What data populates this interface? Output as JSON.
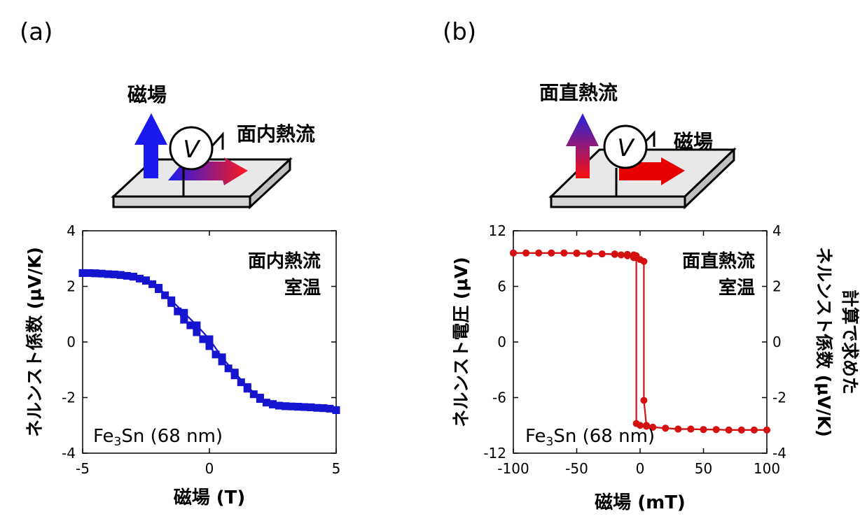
{
  "panels": [
    {
      "label": "(a)",
      "schematic": {
        "field_label": "磁場",
        "heat_label": "面内熱流",
        "voltmeter": "V",
        "field_color": "#1a1af0",
        "heat_color_start": "#1a1af0",
        "heat_color_end": "#ff1a1a"
      }
    },
    {
      "label": "(b)",
      "schematic": {
        "heat_label": "面直熱流",
        "field_label": "磁場",
        "voltmeter": "V",
        "field_color": "#e60000",
        "heat_color_start": "#2222dd",
        "heat_color_end": "#ff1010"
      }
    }
  ],
  "chart_data": [
    {
      "type": "line",
      "marker": "square",
      "color": "#1515d0",
      "xlabel": "磁場 (T)",
      "ylabel": "ネルンスト係数 (μV/K)",
      "xlim": [
        -5,
        5
      ],
      "ylim": [
        -4,
        4
      ],
      "xticks": [
        "-5",
        "0",
        "5"
      ],
      "xtick_values": [
        -5,
        0,
        5
      ],
      "yticks": [
        "4",
        "2",
        "0",
        "-2",
        "-4"
      ],
      "ytick_values": [
        4,
        2,
        0,
        -2,
        -4
      ],
      "annotation_lines": [
        "面内熱流",
        "室温"
      ],
      "sample_prefix": "Fe",
      "sample_sub": "3",
      "sample_suffix": "Sn (68 nm)",
      "series": [
        {
          "x": [
            -5.0,
            -4.75,
            -4.5,
            -4.25,
            -4.0,
            -3.75,
            -3.5,
            -3.25,
            -3.0,
            -2.75,
            -2.5,
            -2.25,
            -2.0,
            -1.75,
            -1.5,
            -1.25,
            -1.0,
            -0.75,
            -0.5,
            -0.25,
            0.0,
            0.25,
            0.5,
            0.75,
            1.0,
            1.25,
            1.5,
            1.75,
            2.0,
            2.25,
            2.5,
            2.75,
            3.0,
            3.25,
            3.5,
            3.75,
            4.0,
            4.25,
            4.5,
            4.75,
            5.0
          ],
          "y": [
            2.48,
            2.48,
            2.47,
            2.46,
            2.44,
            2.43,
            2.41,
            2.38,
            2.35,
            2.28,
            2.2,
            2.08,
            1.9,
            1.68,
            1.4,
            1.1,
            0.8,
            0.6,
            0.35,
            0.1,
            -0.15,
            -0.45,
            -0.7,
            -0.95,
            -1.2,
            -1.45,
            -1.68,
            -1.88,
            -2.05,
            -2.18,
            -2.25,
            -2.29,
            -2.31,
            -2.32,
            -2.33,
            -2.34,
            -2.35,
            -2.37,
            -2.38,
            -2.4,
            -2.45
          ]
        },
        {
          "x": [
            5.0,
            4.5,
            4.0,
            3.5,
            3.0,
            2.5,
            2.0,
            1.5,
            1.0,
            0.5,
            0.0,
            -0.5,
            -1.0,
            -1.5,
            -2.0,
            -2.5,
            -3.0,
            -3.5,
            -4.0,
            -4.5,
            -5.0
          ],
          "y": [
            -2.45,
            -2.38,
            -2.35,
            -2.33,
            -2.31,
            -2.23,
            -2.0,
            -1.62,
            -1.1,
            -0.55,
            0.1,
            0.6,
            1.05,
            1.5,
            1.95,
            2.22,
            2.35,
            2.41,
            2.44,
            2.47,
            2.48
          ]
        }
      ]
    },
    {
      "type": "line",
      "marker": "circle",
      "color": "#d51010",
      "xlabel": "磁場 (mT)",
      "ylabel": "ネルンスト電圧 (μV)",
      "ylabel_right": "計算で求めた\nネルンスト係数 (μV/K)",
      "xlim": [
        -100,
        100
      ],
      "ylim": [
        -12,
        12
      ],
      "ylim_right": [
        -4,
        4
      ],
      "xticks": [
        "-100",
        "-50",
        "0",
        "50",
        "100"
      ],
      "xtick_values": [
        -100,
        -50,
        0,
        50,
        100
      ],
      "yticks": [
        "12",
        "6",
        "0",
        "-6",
        "-12"
      ],
      "ytick_values": [
        12,
        6,
        0,
        -6,
        -12
      ],
      "yticks_right": [
        "4",
        "2",
        "0",
        "-2",
        "-4"
      ],
      "ytick_values_right": [
        4,
        2,
        0,
        -2,
        -4
      ],
      "annotation_lines": [
        "面直熱流",
        "室温"
      ],
      "sample_prefix": "Fe",
      "sample_sub": "3",
      "sample_suffix": "Sn (68 nm)",
      "series": [
        {
          "x": [
            -100,
            -90,
            -80,
            -70,
            -60,
            -50,
            -40,
            -30,
            -20,
            -15,
            -10,
            -5,
            0,
            3,
            3,
            5,
            10,
            20,
            30,
            40,
            50,
            60,
            70,
            80,
            90,
            100
          ],
          "y": [
            9.6,
            9.6,
            9.6,
            9.6,
            9.6,
            9.55,
            9.5,
            9.5,
            9.45,
            9.4,
            9.3,
            9.1,
            8.9,
            8.7,
            -6.3,
            -9.0,
            -9.2,
            -9.3,
            -9.4,
            -9.4,
            -9.45,
            -9.45,
            -9.5,
            -9.5,
            -9.5,
            -9.5
          ]
        },
        {
          "x": [
            100,
            90,
            80,
            70,
            60,
            50,
            40,
            30,
            20,
            10,
            5,
            0,
            -3,
            -3,
            -5,
            -10,
            -20,
            -30,
            -40,
            -50,
            -60,
            -70,
            -80,
            -90,
            -100
          ],
          "y": [
            -9.5,
            -9.5,
            -9.5,
            -9.5,
            -9.45,
            -9.45,
            -9.4,
            -9.4,
            -9.3,
            -9.2,
            -9.1,
            -9.0,
            -8.8,
            9.3,
            9.4,
            9.45,
            9.5,
            9.5,
            9.55,
            9.6,
            9.6,
            9.6,
            9.6,
            9.6,
            9.6
          ]
        }
      ]
    }
  ]
}
